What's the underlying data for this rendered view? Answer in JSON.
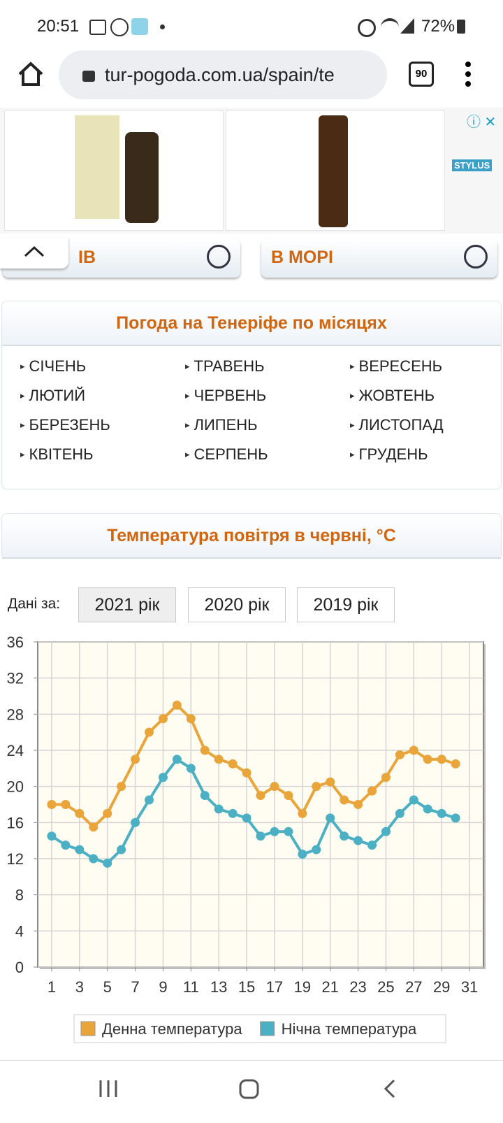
{
  "status_bar": {
    "time": "20:51",
    "battery": "72%"
  },
  "browser": {
    "url": "tur-pogoda.com.ua/spain/te",
    "tabs": "90"
  },
  "ad": {
    "brand": "STYLUS"
  },
  "tabs": [
    "ІВ",
    "В МОРІ"
  ],
  "months_panel": {
    "title": "Погода на Тенеріфе по місяцях",
    "months": [
      "СІЧЕНЬ",
      "ЛЮТИЙ",
      "БЕРЕЗЕНЬ",
      "КВІТЕНЬ",
      "ТРАВЕНЬ",
      "ЧЕРВЕНЬ",
      "ЛИПЕНЬ",
      "СЕРПЕНЬ",
      "ВЕРЕСЕНЬ",
      "ЖОВТЕНЬ",
      "ЛИСТОПАД",
      "ГРУДЕНЬ"
    ]
  },
  "chart_panel": {
    "title": "Температура повітря в червні, °C",
    "year_label": "Дані за:",
    "years": [
      "2021 рік",
      "2020 рік",
      "2019 рік"
    ]
  },
  "chart_data": {
    "type": "line",
    "x": [
      1,
      2,
      3,
      4,
      5,
      6,
      7,
      8,
      9,
      10,
      11,
      12,
      13,
      14,
      15,
      16,
      17,
      18,
      19,
      20,
      21,
      22,
      23,
      24,
      25,
      26,
      27,
      28,
      29,
      30
    ],
    "series": [
      {
        "name": "Денна температура",
        "color": "#e9a43a",
        "values": [
          18,
          18,
          17,
          15.5,
          17,
          20,
          23,
          26,
          27.5,
          29,
          27.5,
          24,
          23,
          22.5,
          21.5,
          19,
          20,
          19,
          17,
          20,
          20.5,
          18.5,
          18,
          19.5,
          21,
          23.5,
          24,
          23,
          23,
          22.5
        ]
      },
      {
        "name": "Нічна температура",
        "color": "#4bb0c3",
        "values": [
          14.5,
          13.5,
          13,
          12,
          11.5,
          13,
          16,
          18.5,
          21,
          23,
          22,
          19,
          17.5,
          17,
          16.5,
          14.5,
          15,
          15,
          12.5,
          13,
          16.5,
          14.5,
          14,
          13.5,
          15,
          17,
          18.5,
          17.5,
          17,
          16.5
        ]
      }
    ],
    "xlim": [
      0,
      32
    ],
    "ylim": [
      0,
      36
    ],
    "xticks": [
      1,
      3,
      5,
      7,
      9,
      11,
      13,
      15,
      17,
      19,
      21,
      23,
      25,
      27,
      29,
      31
    ],
    "yticks": [
      0,
      4,
      8,
      12,
      16,
      20,
      24,
      28,
      32,
      36
    ],
    "grid": true,
    "legend": "bottom"
  }
}
